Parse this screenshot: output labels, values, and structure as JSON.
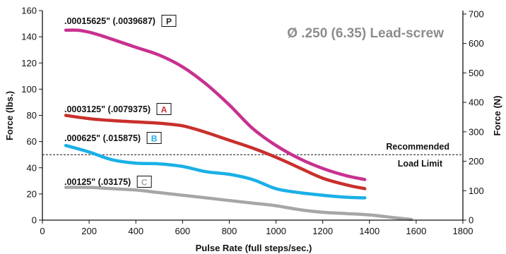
{
  "chart_data": {
    "type": "line",
    "title": "Ø .250 (6.35) Lead-screw",
    "xlabel": "Pulse Rate (full steps/sec.)",
    "ylabel": "Force (lbs.)",
    "y2label": "Force (N)",
    "xlim": [
      0,
      1800
    ],
    "ylim": [
      0,
      160
    ],
    "y2lim": [
      0,
      711.7
    ],
    "xticks": [
      "0",
      "200",
      "400",
      "600",
      "800",
      "1000",
      "1200",
      "1400",
      "1600",
      "1800"
    ],
    "yticks": [
      "0",
      "20",
      "40",
      "60",
      "80",
      "100",
      "120",
      "140",
      "160"
    ],
    "y2ticks": [
      "0",
      "100",
      "200",
      "300",
      "400",
      "500",
      "600",
      "700"
    ],
    "grid": false,
    "series": [
      {
        "name": ".00015625\" (.0039687)",
        "badge": "P",
        "color": "#c8318f",
        "badge_color": "#222222",
        "x": [
          100,
          150,
          200,
          250,
          300,
          400,
          500,
          600,
          700,
          800,
          900,
          1000,
          1100,
          1200,
          1300,
          1380
        ],
        "y": [
          145,
          145,
          143.5,
          141,
          138,
          132,
          126,
          117,
          104,
          88,
          70,
          57,
          47,
          39.5,
          34,
          31
        ]
      },
      {
        "name": ".0003125\" (.0079375)",
        "badge": "A",
        "color": "#c9302c",
        "badge_color": "#c9302c",
        "x": [
          100,
          200,
          300,
          400,
          500,
          600,
          700,
          800,
          900,
          1000,
          1100,
          1200,
          1300,
          1380
        ],
        "y": [
          80,
          77.5,
          76,
          75,
          74,
          72,
          67,
          61,
          55,
          48,
          40,
          32,
          27,
          24
        ]
      },
      {
        "name": ".000625\" (.015875)",
        "badge": "B",
        "color": "#1ab0e6",
        "badge_color": "#1ab0e6",
        "x": [
          100,
          200,
          300,
          400,
          500,
          600,
          700,
          800,
          900,
          1000,
          1100,
          1200,
          1300,
          1380
        ],
        "y": [
          57,
          52,
          46,
          43.5,
          43,
          41,
          37,
          35,
          31,
          24,
          21,
          19,
          17.5,
          17
        ]
      },
      {
        "name": ".00125\" (.03175)",
        "badge": "C",
        "color": "#a6a6a6",
        "badge_color": "#a6a6a6",
        "x": [
          100,
          200,
          300,
          400,
          500,
          600,
          700,
          800,
          900,
          1000,
          1100,
          1200,
          1300,
          1400,
          1500,
          1580
        ],
        "y": [
          25,
          25,
          24,
          23,
          21,
          19,
          17,
          15,
          13,
          11,
          8,
          6,
          5,
          4,
          2,
          0.5
        ]
      }
    ],
    "reference_line": {
      "y": 50,
      "label_top": "Recommended",
      "label_bottom": "Load Limit",
      "style": "dashed"
    }
  }
}
